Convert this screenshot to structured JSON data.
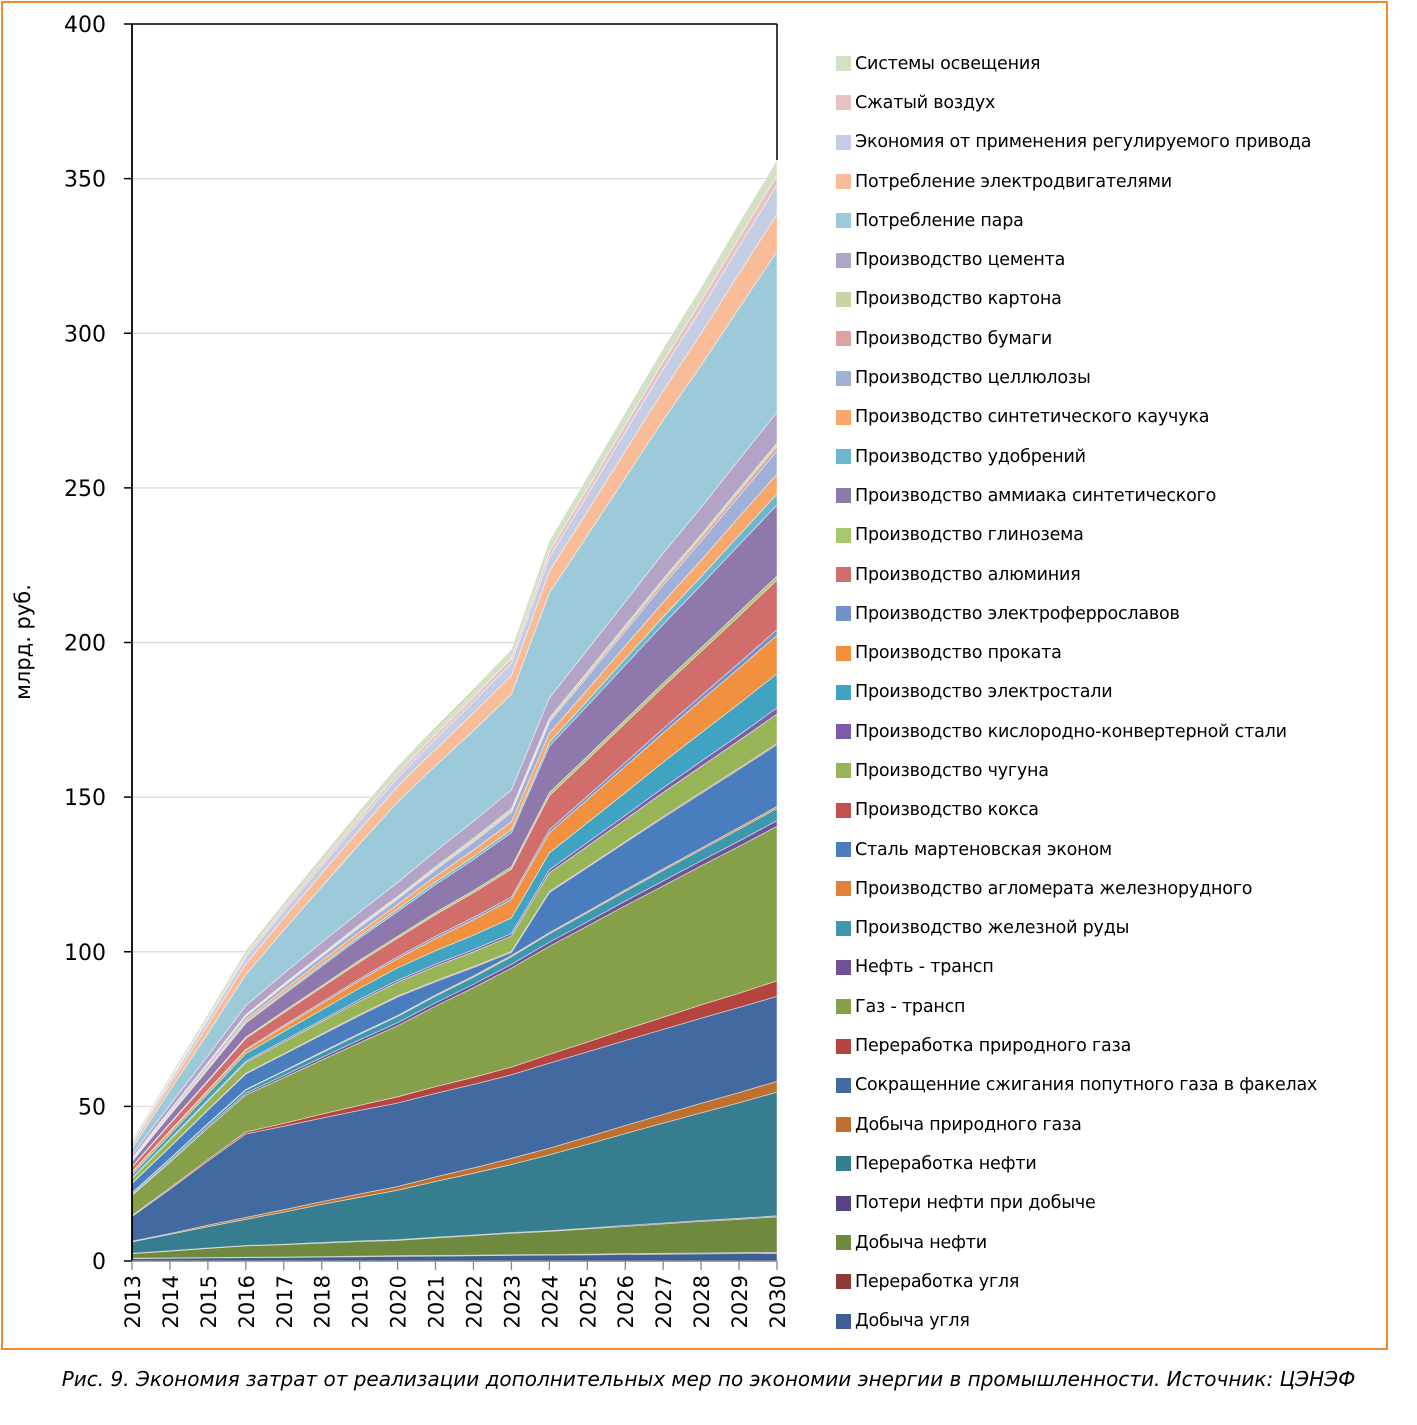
{
  "caption": "Рис. 9. Экономия затрат от реализации дополнительных мер по экономии энергии в промышленности. Источник: ЦЭНЭФ",
  "chart_data": {
    "type": "area",
    "stacked": true,
    "title": "",
    "xlabel": "",
    "ylabel": "млрд. руб.",
    "ylim": [
      0,
      400
    ],
    "yticks": [
      0,
      50,
      100,
      150,
      200,
      250,
      300,
      350,
      400
    ],
    "grid": true,
    "legend_position": "right",
    "x": [
      "2013",
      "2014",
      "2015",
      "2016",
      "2017",
      "2018",
      "2019",
      "2020",
      "2021",
      "2022",
      "2023",
      "2024",
      "2025",
      "2026",
      "2027",
      "2028",
      "2029",
      "2030"
    ],
    "series": [
      {
        "name": "Добыча угля",
        "color": "#3c5f96",
        "values": [
          0.8,
          0.9,
          1.0,
          1.1,
          1.2,
          1.3,
          1.4,
          1.5,
          1.6,
          1.7,
          1.8,
          1.9,
          2.0,
          2.1,
          2.2,
          2.3,
          2.4,
          2.5
        ]
      },
      {
        "name": "Переработка угля",
        "color": "#8e3a36",
        "values": [
          0.1,
          0.1,
          0.1,
          0.1,
          0.1,
          0.1,
          0.2,
          0.2,
          0.2,
          0.2,
          0.2,
          0.2,
          0.2,
          0.3,
          0.3,
          0.3,
          0.3,
          0.3
        ]
      },
      {
        "name": "Добыча нефти",
        "color": "#6f8a3e",
        "values": [
          1.5,
          2.2,
          3.0,
          3.7,
          4.0,
          4.4,
          4.7,
          5.0,
          5.7,
          6.3,
          7.0,
          7.5,
          8.2,
          8.8,
          9.5,
          10.2,
          10.8,
          11.5
        ]
      },
      {
        "name": "Потери нефти при добыче",
        "color": "#5a4382",
        "values": [
          0.1,
          0.1,
          0.1,
          0.1,
          0.1,
          0.2,
          0.2,
          0.2,
          0.2,
          0.2,
          0.2,
          0.2,
          0.2,
          0.3,
          0.3,
          0.3,
          0.3,
          0.3
        ]
      },
      {
        "name": "Переработка нефти",
        "color": "#357d8f",
        "values": [
          3.7,
          5.3,
          6.9,
          8.5,
          10.4,
          12.3,
          14.1,
          16.0,
          18.0,
          20.0,
          22.0,
          24.5,
          27.1,
          29.7,
          32.3,
          34.8,
          37.4,
          40.0
        ]
      },
      {
        "name": "Добыча природного газа",
        "color": "#c0702e",
        "values": [
          0.2,
          0.3,
          0.5,
          0.6,
          0.8,
          0.9,
          1.1,
          1.2,
          1.5,
          1.7,
          2.0,
          2.2,
          2.4,
          2.6,
          2.8,
          3.1,
          3.3,
          3.5
        ]
      },
      {
        "name": "Сокращенние сжигания попутного газа в факелах",
        "color": "#426aa0",
        "values": [
          8.0,
          14.3,
          20.7,
          27.0,
          27.0,
          27.0,
          27.0,
          27.0,
          27.0,
          27.0,
          27.0,
          27.5,
          27.5,
          27.5,
          27.5,
          27.5,
          27.5,
          27.5
        ]
      },
      {
        "name": "Переработка природного газа",
        "color": "#b5433e",
        "values": [
          0.3,
          0.4,
          0.5,
          0.6,
          0.9,
          1.3,
          1.6,
          2.0,
          2.2,
          2.3,
          2.5,
          2.8,
          3.2,
          3.6,
          3.9,
          4.3,
          4.6,
          5.0
        ]
      },
      {
        "name": "Газ - трансп",
        "color": "#86a04a",
        "values": [
          6.5,
          8.3,
          10.2,
          12.0,
          14.8,
          17.5,
          20.3,
          23.0,
          26.0,
          29.0,
          32.0,
          35.0,
          37.5,
          40.0,
          42.5,
          45.0,
          47.5,
          50.0
        ]
      },
      {
        "name": "Нефть - трансп",
        "color": "#6d5394",
        "values": [
          0.3,
          0.4,
          0.5,
          0.6,
          0.7,
          0.8,
          0.9,
          1.0,
          1.1,
          1.1,
          1.2,
          1.3,
          1.4,
          1.5,
          1.6,
          1.6,
          1.7,
          1.8
        ]
      },
      {
        "name": "Производство железной руды",
        "color": "#3d97ae",
        "values": [
          0.5,
          0.7,
          0.8,
          1.0,
          1.3,
          1.5,
          1.8,
          2.0,
          2.2,
          2.3,
          2.5,
          2.7,
          2.9,
          3.1,
          3.4,
          3.6,
          3.8,
          4.0
        ]
      },
      {
        "name": "Производство агломерата железнорудного",
        "color": "#e0823a",
        "values": [
          0.1,
          0.1,
          0.2,
          0.2,
          0.2,
          0.3,
          0.3,
          0.3,
          0.3,
          0.4,
          0.4,
          0.4,
          0.4,
          0.5,
          0.5,
          0.5,
          0.6,
          0.6
        ]
      },
      {
        "name": "Сталь мартеновская эконом",
        "color": "#4a7dbd",
        "values": [
          3.0,
          3.7,
          4.3,
          5.0,
          5.3,
          5.5,
          5.8,
          6.0,
          4.3,
          2.7,
          1.0,
          13.0,
          14.2,
          15.3,
          16.5,
          17.7,
          18.8,
          20.0
        ]
      },
      {
        "name": "Производство кокса",
        "color": "#c2504c",
        "values": [
          0.1,
          0.1,
          0.2,
          0.2,
          0.2,
          0.3,
          0.3,
          0.3,
          0.3,
          0.3,
          0.3,
          0.3,
          0.3,
          0.3,
          0.4,
          0.4,
          0.4,
          0.4
        ]
      },
      {
        "name": "Производство чугуна",
        "color": "#97b557",
        "values": [
          1.5,
          2.2,
          2.8,
          3.5,
          3.8,
          4.0,
          4.3,
          4.5,
          4.7,
          4.8,
          5.0,
          6.0,
          6.6,
          7.2,
          7.8,
          8.3,
          8.9,
          9.5
        ]
      },
      {
        "name": "Производство кислородно-конвертерной стали",
        "color": "#7c5ba8",
        "values": [
          0.2,
          0.3,
          0.3,
          0.4,
          0.5,
          0.5,
          0.6,
          0.6,
          0.7,
          0.7,
          0.8,
          1.0,
          1.2,
          1.3,
          1.5,
          1.7,
          1.8,
          2.0
        ]
      },
      {
        "name": "Производство электростали",
        "color": "#40a3c2",
        "values": [
          1.0,
          1.5,
          2.0,
          2.5,
          2.9,
          3.3,
          3.6,
          4.0,
          4.3,
          4.7,
          5.0,
          5.5,
          6.4,
          7.3,
          8.3,
          9.2,
          10.1,
          11.0
        ]
      },
      {
        "name": "Производство проката",
        "color": "#f1913f",
        "values": [
          0.8,
          0.9,
          0.9,
          1.0,
          1.5,
          2.0,
          2.5,
          3.0,
          4.0,
          5.0,
          6.0,
          6.5,
          7.5,
          8.5,
          9.5,
          10.5,
          11.5,
          12.5
        ]
      },
      {
        "name": "Производство электроферрославов",
        "color": "#7291cb",
        "values": [
          0.2,
          0.3,
          0.3,
          0.4,
          0.5,
          0.5,
          0.6,
          0.6,
          0.7,
          0.7,
          0.8,
          1.0,
          1.1,
          1.3,
          1.4,
          1.5,
          1.7,
          1.8
        ]
      },
      {
        "name": "Производство алюминия",
        "color": "#d16d6a",
        "values": [
          1.5,
          2.2,
          2.8,
          3.5,
          4.1,
          4.8,
          5.4,
          6.0,
          7.0,
          8.0,
          9.0,
          11.0,
          11.8,
          12.7,
          13.5,
          14.3,
          15.2,
          16.0
        ]
      },
      {
        "name": "Производство глинозема",
        "color": "#a7c76f",
        "values": [
          0.2,
          0.3,
          0.3,
          0.4,
          0.5,
          0.5,
          0.6,
          0.6,
          0.7,
          0.7,
          0.8,
          1.0,
          1.1,
          1.1,
          1.2,
          1.2,
          1.3,
          1.3
        ]
      },
      {
        "name": "Производство аммиака  синтетического",
        "color": "#8e78ac",
        "values": [
          1.5,
          2.5,
          3.5,
          4.5,
          5.4,
          6.3,
          7.1,
          8.0,
          9.0,
          10.0,
          11.0,
          15.0,
          16.3,
          17.7,
          19.0,
          20.3,
          21.7,
          23.0
        ]
      },
      {
        "name": "Производство удобрений",
        "color": "#6ab7cf",
        "values": [
          0.2,
          0.3,
          0.3,
          0.4,
          0.5,
          0.6,
          0.7,
          0.8,
          0.9,
          0.9,
          1.0,
          1.2,
          1.6,
          2.0,
          2.4,
          2.7,
          3.1,
          3.5
        ]
      },
      {
        "name": "Производство синтетического каучука",
        "color": "#f6a76b",
        "values": [
          0.3,
          0.5,
          0.6,
          0.8,
          1.0,
          1.2,
          1.3,
          1.5,
          1.8,
          2.2,
          2.5,
          3.0,
          3.6,
          4.2,
          4.8,
          5.3,
          5.9,
          6.5
        ]
      },
      {
        "name": "Производство целлюлозы",
        "color": "#9fb1d8",
        "values": [
          0.4,
          0.6,
          0.8,
          1.0,
          1.2,
          1.4,
          1.5,
          1.7,
          2.1,
          2.6,
          3.0,
          3.5,
          4.2,
          4.8,
          5.5,
          6.2,
          6.8,
          7.5
        ]
      },
      {
        "name": "Производство бумаги",
        "color": "#dba2a0",
        "values": [
          0.1,
          0.1,
          0.2,
          0.2,
          0.3,
          0.3,
          0.4,
          0.4,
          0.4,
          0.5,
          0.5,
          0.6,
          0.8,
          0.9,
          1.1,
          1.2,
          1.4,
          1.5
        ]
      },
      {
        "name": "Производство картона",
        "color": "#c3d6a3",
        "values": [
          0.2,
          0.2,
          0.3,
          0.3,
          0.4,
          0.4,
          0.5,
          0.5,
          0.6,
          0.7,
          0.8,
          0.8,
          0.8,
          0.9,
          0.9,
          0.9,
          1.0,
          1.0
        ]
      },
      {
        "name": "Производство цемента",
        "color": "#b3a3c6",
        "values": [
          1.0,
          1.7,
          2.3,
          3.0,
          3.4,
          3.8,
          4.1,
          4.5,
          5.0,
          5.5,
          6.0,
          6.5,
          7.1,
          7.7,
          8.3,
          8.8,
          9.4,
          10.0
        ]
      },
      {
        "name": "Потребление пара",
        "color": "#9ccadb",
        "values": [
          2.0,
          4.7,
          7.3,
          10.0,
          14.0,
          18.0,
          22.0,
          26.0,
          27.7,
          29.3,
          31.0,
          34.0,
          37.0,
          40.0,
          43.0,
          46.0,
          49.0,
          52.0
        ]
      },
      {
        "name": "Потребление электродвигателями",
        "color": "#f8bc98",
        "values": [
          1.0,
          1.8,
          2.7,
          3.5,
          3.9,
          4.3,
          4.6,
          5.0,
          5.3,
          5.7,
          6.0,
          7.0,
          7.8,
          8.7,
          9.5,
          10.3,
          11.2,
          12.0
        ]
      },
      {
        "name": "Экономия от применения регулируемого привода",
        "color": "#c4cde4",
        "values": [
          0.8,
          1.2,
          1.6,
          2.0,
          2.3,
          2.5,
          2.8,
          3.0,
          3.3,
          3.7,
          4.0,
          4.5,
          5.3,
          6.2,
          7.0,
          7.8,
          8.7,
          9.5
        ]
      },
      {
        "name": "Сжатый воздух",
        "color": "#e8c1c3",
        "values": [
          0.3,
          0.5,
          0.6,
          0.8,
          0.9,
          1.0,
          1.1,
          1.2,
          1.3,
          1.4,
          1.5,
          1.8,
          2.0,
          2.2,
          2.4,
          2.6,
          2.8,
          3.0
        ]
      },
      {
        "name": "Системы освещения",
        "color": "#d3e0c6",
        "values": [
          0.7,
          1.0,
          1.2,
          1.5,
          1.8,
          2.0,
          2.3,
          2.5,
          2.7,
          2.8,
          3.0,
          3.5,
          3.8,
          4.0,
          4.3,
          4.5,
          4.8,
          5.0
        ]
      }
    ]
  }
}
